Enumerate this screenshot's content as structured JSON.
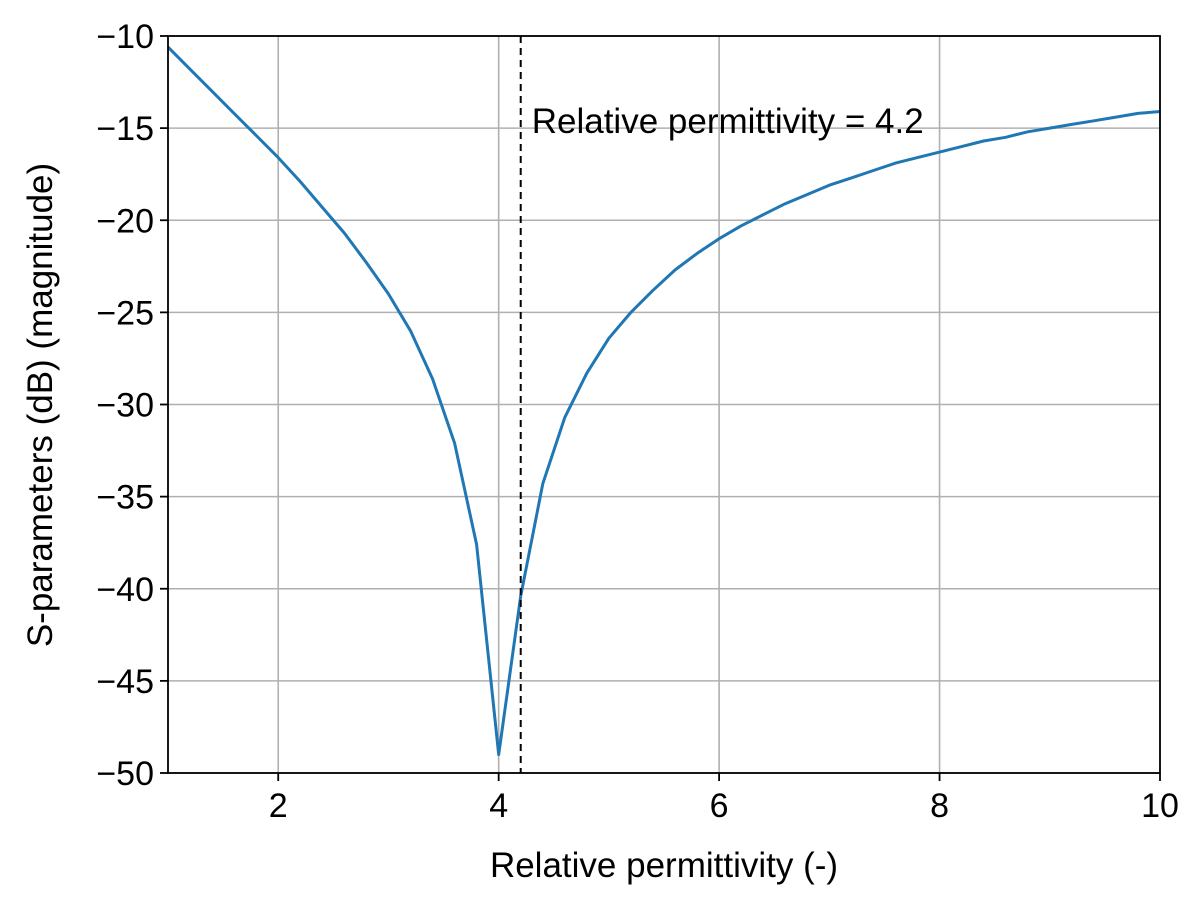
{
  "chart_data": {
    "type": "line",
    "title": "",
    "xlabel": "Relative permittivity (-)",
    "ylabel": "S-parameters (dB) (magnitude)",
    "xlim": [
      1,
      10
    ],
    "ylim": [
      -50,
      -10
    ],
    "xticks": [
      2,
      4,
      6,
      8,
      10
    ],
    "yticks": [
      -50,
      -45,
      -40,
      -35,
      -30,
      -25,
      -20,
      -15,
      -10
    ],
    "xtick_labels": [
      "2",
      "4",
      "6",
      "8",
      "10"
    ],
    "ytick_labels": [
      "−50",
      "−45",
      "−40",
      "−35",
      "−30",
      "−25",
      "−20",
      "−15",
      "−10"
    ],
    "grid": true,
    "line_color": "#1f77b4",
    "series": [
      {
        "x": [
          1.0,
          1.2,
          1.4,
          1.6,
          1.8,
          2.0,
          2.2,
          2.4,
          2.6,
          2.8,
          3.0,
          3.2,
          3.4,
          3.6,
          3.8,
          4.0,
          4.2,
          4.4,
          4.6,
          4.8,
          5.0,
          5.2,
          5.4,
          5.6,
          5.8,
          6.0,
          6.2,
          6.4,
          6.6,
          6.8,
          7.0,
          7.2,
          7.4,
          7.6,
          7.8,
          8.0,
          8.2,
          8.4,
          8.6,
          8.8,
          9.0,
          9.2,
          9.4,
          9.6,
          9.8,
          10.0
        ],
        "y": [
          -10.6,
          -11.8,
          -13.0,
          -14.2,
          -15.4,
          -16.6,
          -17.9,
          -19.3,
          -20.7,
          -22.3,
          -24.0,
          -26.0,
          -28.6,
          -32.1,
          -37.6,
          -49.0,
          -40.4,
          -34.3,
          -30.7,
          -28.3,
          -26.4,
          -25.0,
          -23.8,
          -22.7,
          -21.8,
          -21.0,
          -20.3,
          -19.7,
          -19.1,
          -18.6,
          -18.1,
          -17.7,
          -17.3,
          -16.9,
          -16.6,
          -16.3,
          -16.0,
          -15.7,
          -15.5,
          -15.2,
          -15.0,
          -14.8,
          -14.6,
          -14.4,
          -14.2,
          -14.1
        ]
      }
    ],
    "reference_line": {
      "x": 4.2,
      "style": "dashed",
      "color": "#000000"
    },
    "annotation": {
      "text": "Relative permittivity = 4.2",
      "x": 4.3,
      "y": -14.6
    }
  }
}
